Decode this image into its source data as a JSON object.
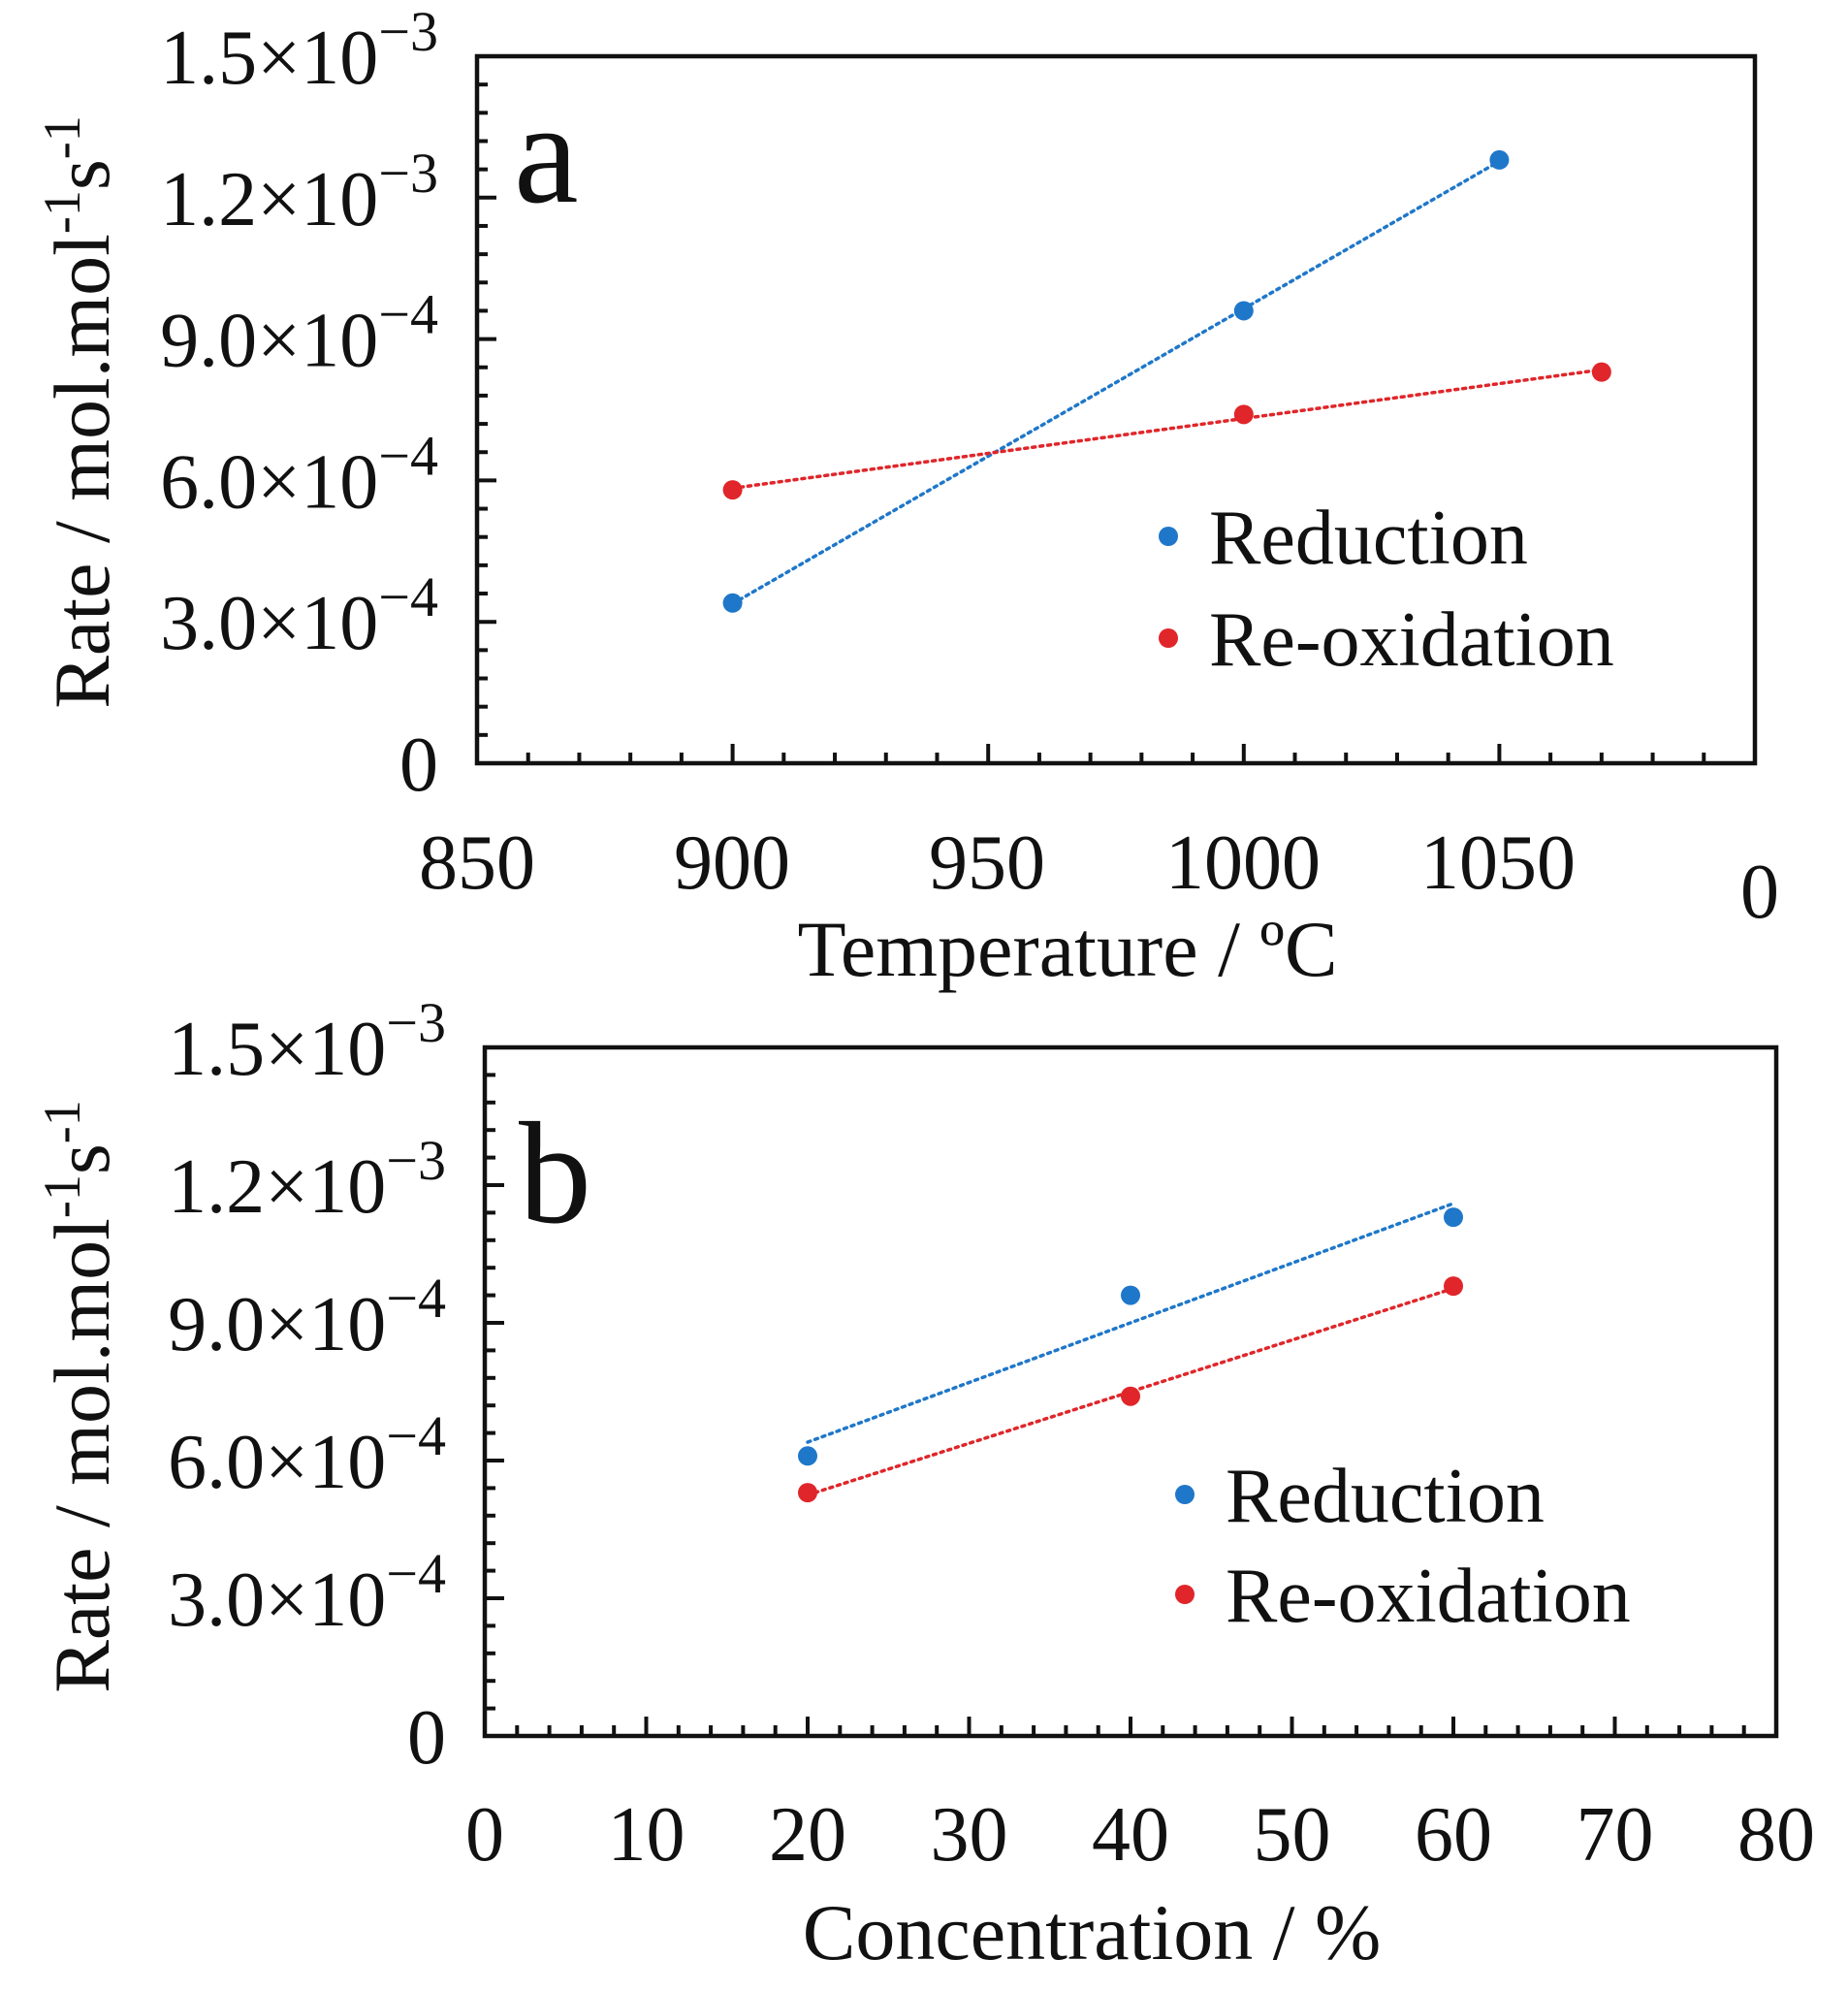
{
  "colors": {
    "reduction": "#1f77c9",
    "reoxidation": "#e0262a",
    "axis": "#111111"
  },
  "chart_data": [
    {
      "type": "scatter",
      "panel_label": "a",
      "xlabel": "Temperature / ºC",
      "ylabel": "Rate / mol.mol-1s-1",
      "ylabel_parts": [
        "Rate / mol.mol",
        "-1",
        "s",
        "-1"
      ],
      "xlim": [
        850,
        1100
      ],
      "ylim": [
        0,
        0.0015
      ],
      "x_ticks": [
        "850",
        "900",
        "950",
        "1000",
        "1050",
        "0"
      ],
      "y_ticks": [
        {
          "mantissa": "1.5×10",
          "exp": "−3"
        },
        {
          "mantissa": "1.2×10",
          "exp": "−3"
        },
        {
          "mantissa": "9.0×10",
          "exp": "−4"
        },
        {
          "mantissa": "6.0×10",
          "exp": "−4"
        },
        {
          "mantissa": "3.0×10",
          "exp": "−4"
        },
        {
          "mantissa": "0",
          "exp": ""
        }
      ],
      "series": [
        {
          "name": "Reduction",
          "color": "#1f77c9",
          "x": [
            900,
            1000,
            1050
          ],
          "y": [
            0.00034,
            0.00096,
            0.00128
          ],
          "trendline": "linear"
        },
        {
          "name": "Re-oxidation",
          "color": "#e0262a",
          "x": [
            900,
            1000,
            1070
          ],
          "y": [
            0.00058,
            0.00074,
            0.00083
          ],
          "trendline": "linear"
        }
      ],
      "legend": "lower-right"
    },
    {
      "type": "scatter",
      "panel_label": "b",
      "xlabel": "Concentration / %",
      "ylabel": "Rate / mol.mol-1s-1",
      "ylabel_parts": [
        "Rate / mol.mol",
        "-1",
        "s",
        "-1"
      ],
      "xlim": [
        0,
        80
      ],
      "ylim": [
        0,
        0.0015
      ],
      "x_ticks": [
        "0",
        "10",
        "20",
        "30",
        "40",
        "50",
        "60",
        "70",
        "80"
      ],
      "y_ticks": [
        {
          "mantissa": "1.5×10",
          "exp": "−3"
        },
        {
          "mantissa": "1.2×10",
          "exp": "−3"
        },
        {
          "mantissa": "9.0×10",
          "exp": "−4"
        },
        {
          "mantissa": "6.0×10",
          "exp": "−4"
        },
        {
          "mantissa": "3.0×10",
          "exp": "−4"
        },
        {
          "mantissa": "0",
          "exp": ""
        }
      ],
      "series": [
        {
          "name": "Reduction",
          "color": "#1f77c9",
          "x": [
            20,
            40,
            60
          ],
          "y": [
            0.00061,
            0.00096,
            0.00113
          ],
          "trendline": "linear"
        },
        {
          "name": "Re-oxidation",
          "color": "#e0262a",
          "x": [
            20,
            40,
            60
          ],
          "y": [
            0.00053,
            0.00074,
            0.00098
          ],
          "trendline": "linear"
        }
      ],
      "legend": "lower-right"
    }
  ]
}
